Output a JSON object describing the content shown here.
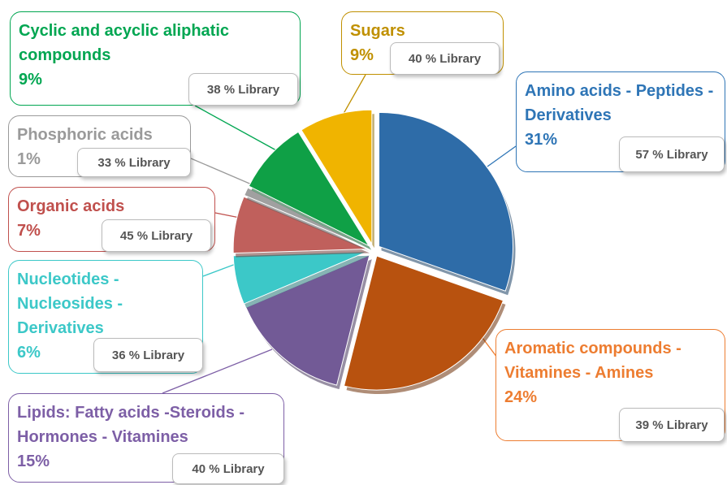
{
  "chart_data": {
    "type": "pie",
    "categories": [
      "Amino acids - Peptides - Derivatives",
      "Aromatic compounds - Vitamines - Amines",
      "Lipids: Fatty acids -Steroids - Hormones - Vitamines",
      "Nucleotides - Nucleosides - Derivatives",
      "Organic acids",
      "Phosphoric acids",
      "Cyclic and acyclic aliphatic compounds",
      "Sugars"
    ],
    "values": [
      31,
      24,
      15,
      6,
      7,
      1,
      9,
      9
    ],
    "value_labels": [
      "31%",
      "24%",
      "15%",
      "6%",
      "7%",
      "1%",
      "9%",
      "9%"
    ],
    "library_labels": [
      "57 % Library",
      "39 % Library",
      "40 % Library",
      "36 % Library",
      "45 % Library",
      "33 % Library",
      "38 % Library",
      "40 % Library"
    ],
    "colors": [
      "#2e6ca8",
      "#b8520f",
      "#725a96",
      "#3cc8c8",
      "#c0605c",
      "#a0a0a0",
      "#0fa046",
      "#f0b400"
    ],
    "label_colors": [
      "#2e75b6",
      "#ed7d31",
      "#7d5fa6",
      "#3cc8c8",
      "#c0504d",
      "#9a9a9a",
      "#00a651",
      "#c09000"
    ]
  }
}
